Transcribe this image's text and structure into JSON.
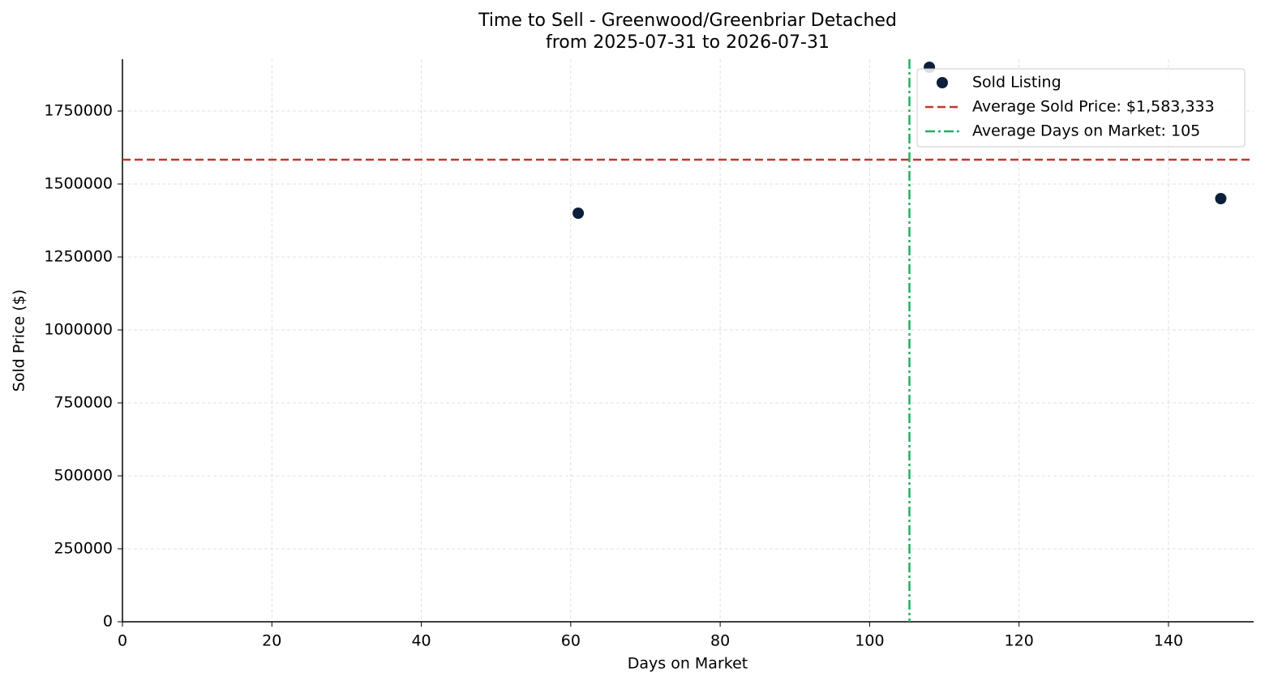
{
  "chart_data": {
    "type": "scatter",
    "title": "Time to Sell - Greenwood/Greenbriar Detached",
    "subtitle": "from 2025-07-31 to 2026-07-31",
    "x_label": "Days on Market",
    "y_label": "Sold Price ($)",
    "series": [
      {
        "name": "Sold Listing",
        "color": "#0b1f3a",
        "x": [
          61,
          108,
          147
        ],
        "values": [
          1400000,
          1900000,
          1450000
        ]
      }
    ],
    "reference_lines": [
      {
        "name": "Average Sold Price: $1,583,333",
        "axis": "y",
        "value": 1583333,
        "color": "#c0392b",
        "dash": "dashed"
      },
      {
        "name": "Average Days on Market: 105",
        "axis": "x",
        "value": 105.33,
        "color": "#27ae60",
        "dash": "dashdot"
      }
    ],
    "xlim": [
      0,
      151.4
    ],
    "xticks": [
      0,
      20,
      40,
      60,
      80,
      100,
      120,
      140
    ],
    "ylim": [
      0,
      1927800
    ],
    "yticks": [
      0,
      250000,
      500000,
      750000,
      1000000,
      1250000,
      1500000,
      1750000
    ],
    "grid": true,
    "legend": "upper right"
  }
}
